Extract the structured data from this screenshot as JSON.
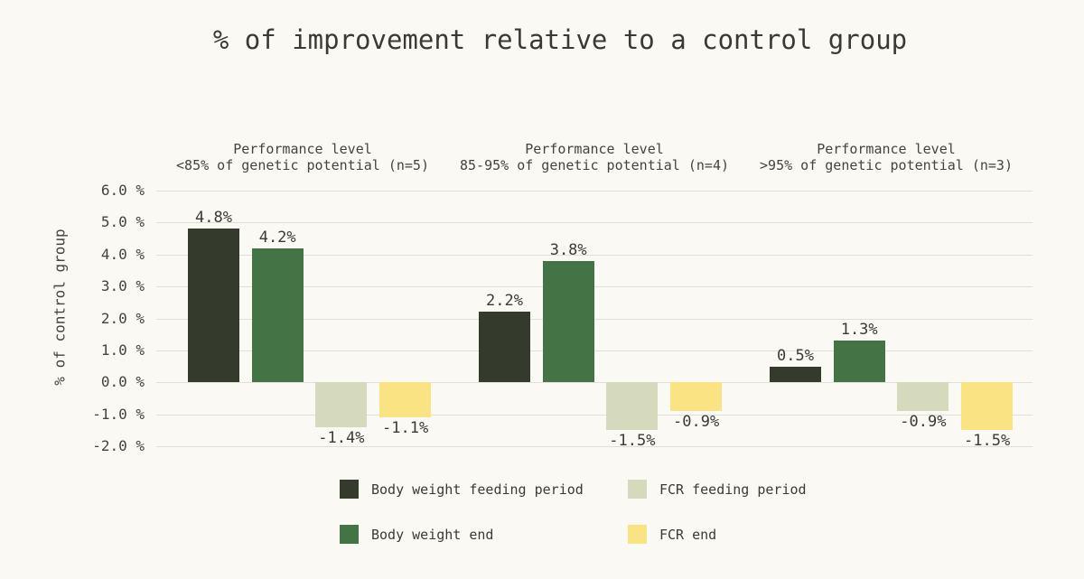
{
  "title": "% of improvement relative to a control group",
  "y_axis": {
    "title": "% of control group",
    "tick_labels": [
      "6.0 %",
      "5.0 %",
      "4.0 %",
      "3.0 %",
      "2.0 %",
      "1.0 %",
      "0.0 %",
      "-1.0 %",
      "-2.0 %"
    ]
  },
  "facets": [
    {
      "line1": "Performance level",
      "line2": "<85% of genetic potential (n=5)"
    },
    {
      "line1": "Performance level",
      "line2": "85-95% of genetic potential (n=4)"
    },
    {
      "line1": "Performance level",
      "line2": ">95% of genetic potential (n=3)"
    }
  ],
  "legend": {
    "items": [
      {
        "label": "Body weight feeding period",
        "color": "#343a2c"
      },
      {
        "label": "FCR feeding period",
        "color": "#d6dabc"
      },
      {
        "label": "Body weight end",
        "color": "#447345"
      },
      {
        "label": "FCR end",
        "color": "#f9e383"
      }
    ]
  },
  "colors": {
    "background": "#faf9f3",
    "text": "#3b3b35",
    "grid": "#e0dfda",
    "body_weight_feeding_period": "#343a2c",
    "body_weight_end": "#447345",
    "fcr_feeding_period": "#d6dabc",
    "fcr_end": "#f9e383"
  },
  "chart_data": {
    "type": "bar",
    "title": "% of improvement relative to a control group",
    "ylabel": "% of control group",
    "xlabel": "",
    "ylim": [
      -2.0,
      6.0
    ],
    "y_tick_step": 1.0,
    "grid": true,
    "legend_position": "bottom",
    "category_header": "Performance level",
    "categories": [
      "<85% of genetic potential (n=5)",
      "85-95% of genetic potential (n=4)",
      ">95% of genetic potential (n=3)"
    ],
    "series": [
      {
        "name": "Body weight feeding period",
        "color": "#343a2c",
        "values": [
          4.8,
          2.2,
          0.5
        ],
        "labels": [
          "4.8%",
          "2.2%",
          "0.5%"
        ]
      },
      {
        "name": "Body weight end",
        "color": "#447345",
        "values": [
          4.2,
          3.8,
          1.3
        ],
        "labels": [
          "4.2%",
          "3.8%",
          "1.3%"
        ]
      },
      {
        "name": "FCR feeding period",
        "color": "#d6dabc",
        "values": [
          -1.4,
          -1.5,
          -0.9
        ],
        "labels": [
          "-1.4%",
          "-1.5%",
          "-0.9%"
        ]
      },
      {
        "name": "FCR end",
        "color": "#f9e383",
        "values": [
          -1.1,
          -0.9,
          -1.5
        ],
        "labels": [
          "-1.1%",
          "-0.9%",
          "-1.5%"
        ]
      }
    ]
  }
}
